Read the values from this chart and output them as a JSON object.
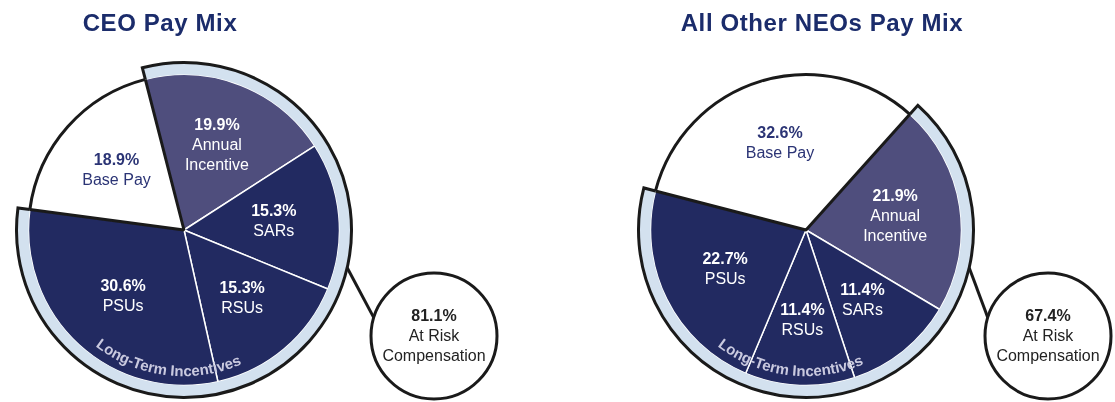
{
  "chart_data": [
    {
      "type": "pie",
      "title": "CEO Pay Mix",
      "categories": [
        "Annual Incentive",
        "SARs",
        "RSUs",
        "PSUs",
        "Base Pay"
      ],
      "values": [
        19.9,
        15.3,
        15.3,
        30.6,
        18.9
      ],
      "value_labels": [
        "19.9%",
        "15.3%",
        "15.3%",
        "30.6%",
        "18.9%"
      ],
      "colors": [
        "#4f4e7d",
        "#222a61",
        "#222a61",
        "#222a61",
        "#ffffff"
      ],
      "annotations": [
        "81.1% At Risk Compensation",
        "Long-Term Incentives"
      ]
    },
    {
      "type": "pie",
      "title": "All Other NEOs Pay Mix",
      "categories": [
        "Annual Incentive",
        "SARs",
        "RSUs",
        "PSUs",
        "Base Pay"
      ],
      "values": [
        21.9,
        11.4,
        11.4,
        22.7,
        32.6
      ],
      "value_labels": [
        "21.9%",
        "11.4%",
        "11.4%",
        "22.7%",
        "32.6%"
      ],
      "colors": [
        "#4f4e7d",
        "#222a61",
        "#222a61",
        "#222a61",
        "#ffffff"
      ],
      "annotations": [
        "67.4% At Risk Compensation",
        "Long-Term Incentives"
      ]
    }
  ]
}
